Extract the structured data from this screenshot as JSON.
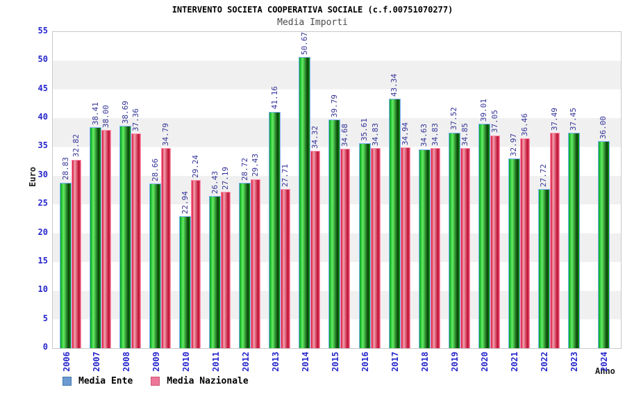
{
  "header": {
    "title": "INTERVENTO SOCIETA COOPERATIVA SOCIALE (c.f.00751070277)",
    "subtitle": "Media Importi"
  },
  "axes": {
    "y_label": "Euro",
    "x_label": "Anno",
    "y_ticks": [
      0,
      5,
      10,
      15,
      20,
      25,
      30,
      35,
      40,
      45,
      50,
      55
    ]
  },
  "legend": {
    "items": [
      {
        "label": "Media Ente",
        "swatch": "#6b9bd2",
        "border": "#4477aa"
      },
      {
        "label": "Media Nazionale",
        "swatch": "#ee7799",
        "border": "#cc5577"
      }
    ]
  },
  "chart_data": {
    "type": "bar",
    "title": "INTERVENTO SOCIETA COOPERATIVA SOCIALE (c.f.00751070277)",
    "subtitle": "Media Importi",
    "xlabel": "Anno",
    "ylabel": "Euro",
    "ylim": [
      0,
      55
    ],
    "ytick_step": 5,
    "grid": "alternating-horizontal-bands",
    "legend_position": "bottom-left",
    "categories": [
      "2006",
      "2007",
      "2008",
      "2009",
      "2010",
      "2011",
      "2012",
      "2013",
      "2014",
      "2015",
      "2016",
      "2017",
      "2018",
      "2019",
      "2020",
      "2021",
      "2022",
      "2023",
      "2024"
    ],
    "series": [
      {
        "name": "Media Ente",
        "fill_gradient": [
          "#00A31C",
          "#63EE63",
          "#084008",
          "#14A014"
        ],
        "border_color": "#7fb2ff",
        "values": [
          28.83,
          38.41,
          38.69,
          28.66,
          22.94,
          26.43,
          28.72,
          41.16,
          50.67,
          39.79,
          35.61,
          43.34,
          34.63,
          37.52,
          39.01,
          32.97,
          27.72,
          37.45,
          36.0
        ]
      },
      {
        "name": "Media Nazionale",
        "fill_gradient": [
          "#D8123A",
          "#F2A2AE",
          "#C00E32",
          "#E05570"
        ],
        "border_color": "#ff8fb0",
        "values": [
          32.82,
          38.0,
          37.36,
          34.79,
          29.24,
          27.19,
          29.43,
          27.71,
          34.32,
          34.68,
          34.83,
          34.94,
          34.83,
          34.85,
          37.05,
          36.46,
          37.49,
          null,
          null
        ]
      }
    ],
    "value_label_color": "#333399",
    "tick_label_color": "#2525cc",
    "band_colors": [
      "#ffffff",
      "#f0f0f0"
    ]
  }
}
